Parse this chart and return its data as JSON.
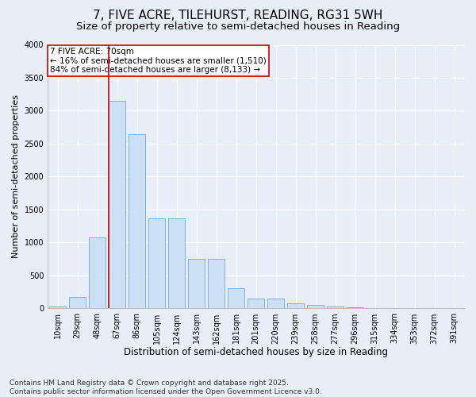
{
  "title": "7, FIVE ACRE, TILEHURST, READING, RG31 5WH",
  "subtitle": "Size of property relative to semi-detached houses in Reading",
  "xlabel": "Distribution of semi-detached houses by size in Reading",
  "ylabel": "Number of semi-detached properties",
  "categories": [
    "10sqm",
    "29sqm",
    "48sqm",
    "67sqm",
    "86sqm",
    "105sqm",
    "124sqm",
    "143sqm",
    "162sqm",
    "181sqm",
    "201sqm",
    "220sqm",
    "239sqm",
    "258sqm",
    "277sqm",
    "296sqm",
    "315sqm",
    "334sqm",
    "353sqm",
    "372sqm",
    "391sqm"
  ],
  "values": [
    25,
    175,
    1080,
    3150,
    2650,
    1370,
    1370,
    750,
    750,
    310,
    150,
    150,
    75,
    50,
    35,
    20,
    10,
    8,
    3,
    2,
    1
  ],
  "bar_color": "#cce0f5",
  "bar_edge_color": "#6aaed6",
  "vline_color": "#cc0000",
  "vline_bar_index": 3,
  "annotation_line1": "7 FIVE ACRE: 70sqm",
  "annotation_line2": "← 16% of semi-detached houses are smaller (1,510)",
  "annotation_line3": "84% of semi-detached houses are larger (8,133) →",
  "annotation_box_facecolor": "#ffffff",
  "annotation_box_edgecolor": "#cc0000",
  "footer_text": "Contains HM Land Registry data © Crown copyright and database right 2025.\nContains public sector information licensed under the Open Government Licence v3.0.",
  "ylim_max": 4000,
  "fig_facecolor": "#e8eef8",
  "ax_facecolor": "#e8eef8",
  "grid_color": "#ffffff",
  "title_fontsize": 11,
  "subtitle_fontsize": 9.5,
  "ylabel_fontsize": 8,
  "xlabel_fontsize": 8.5,
  "tick_fontsize": 7,
  "footer_fontsize": 6.5,
  "annot_fontsize": 7.5
}
